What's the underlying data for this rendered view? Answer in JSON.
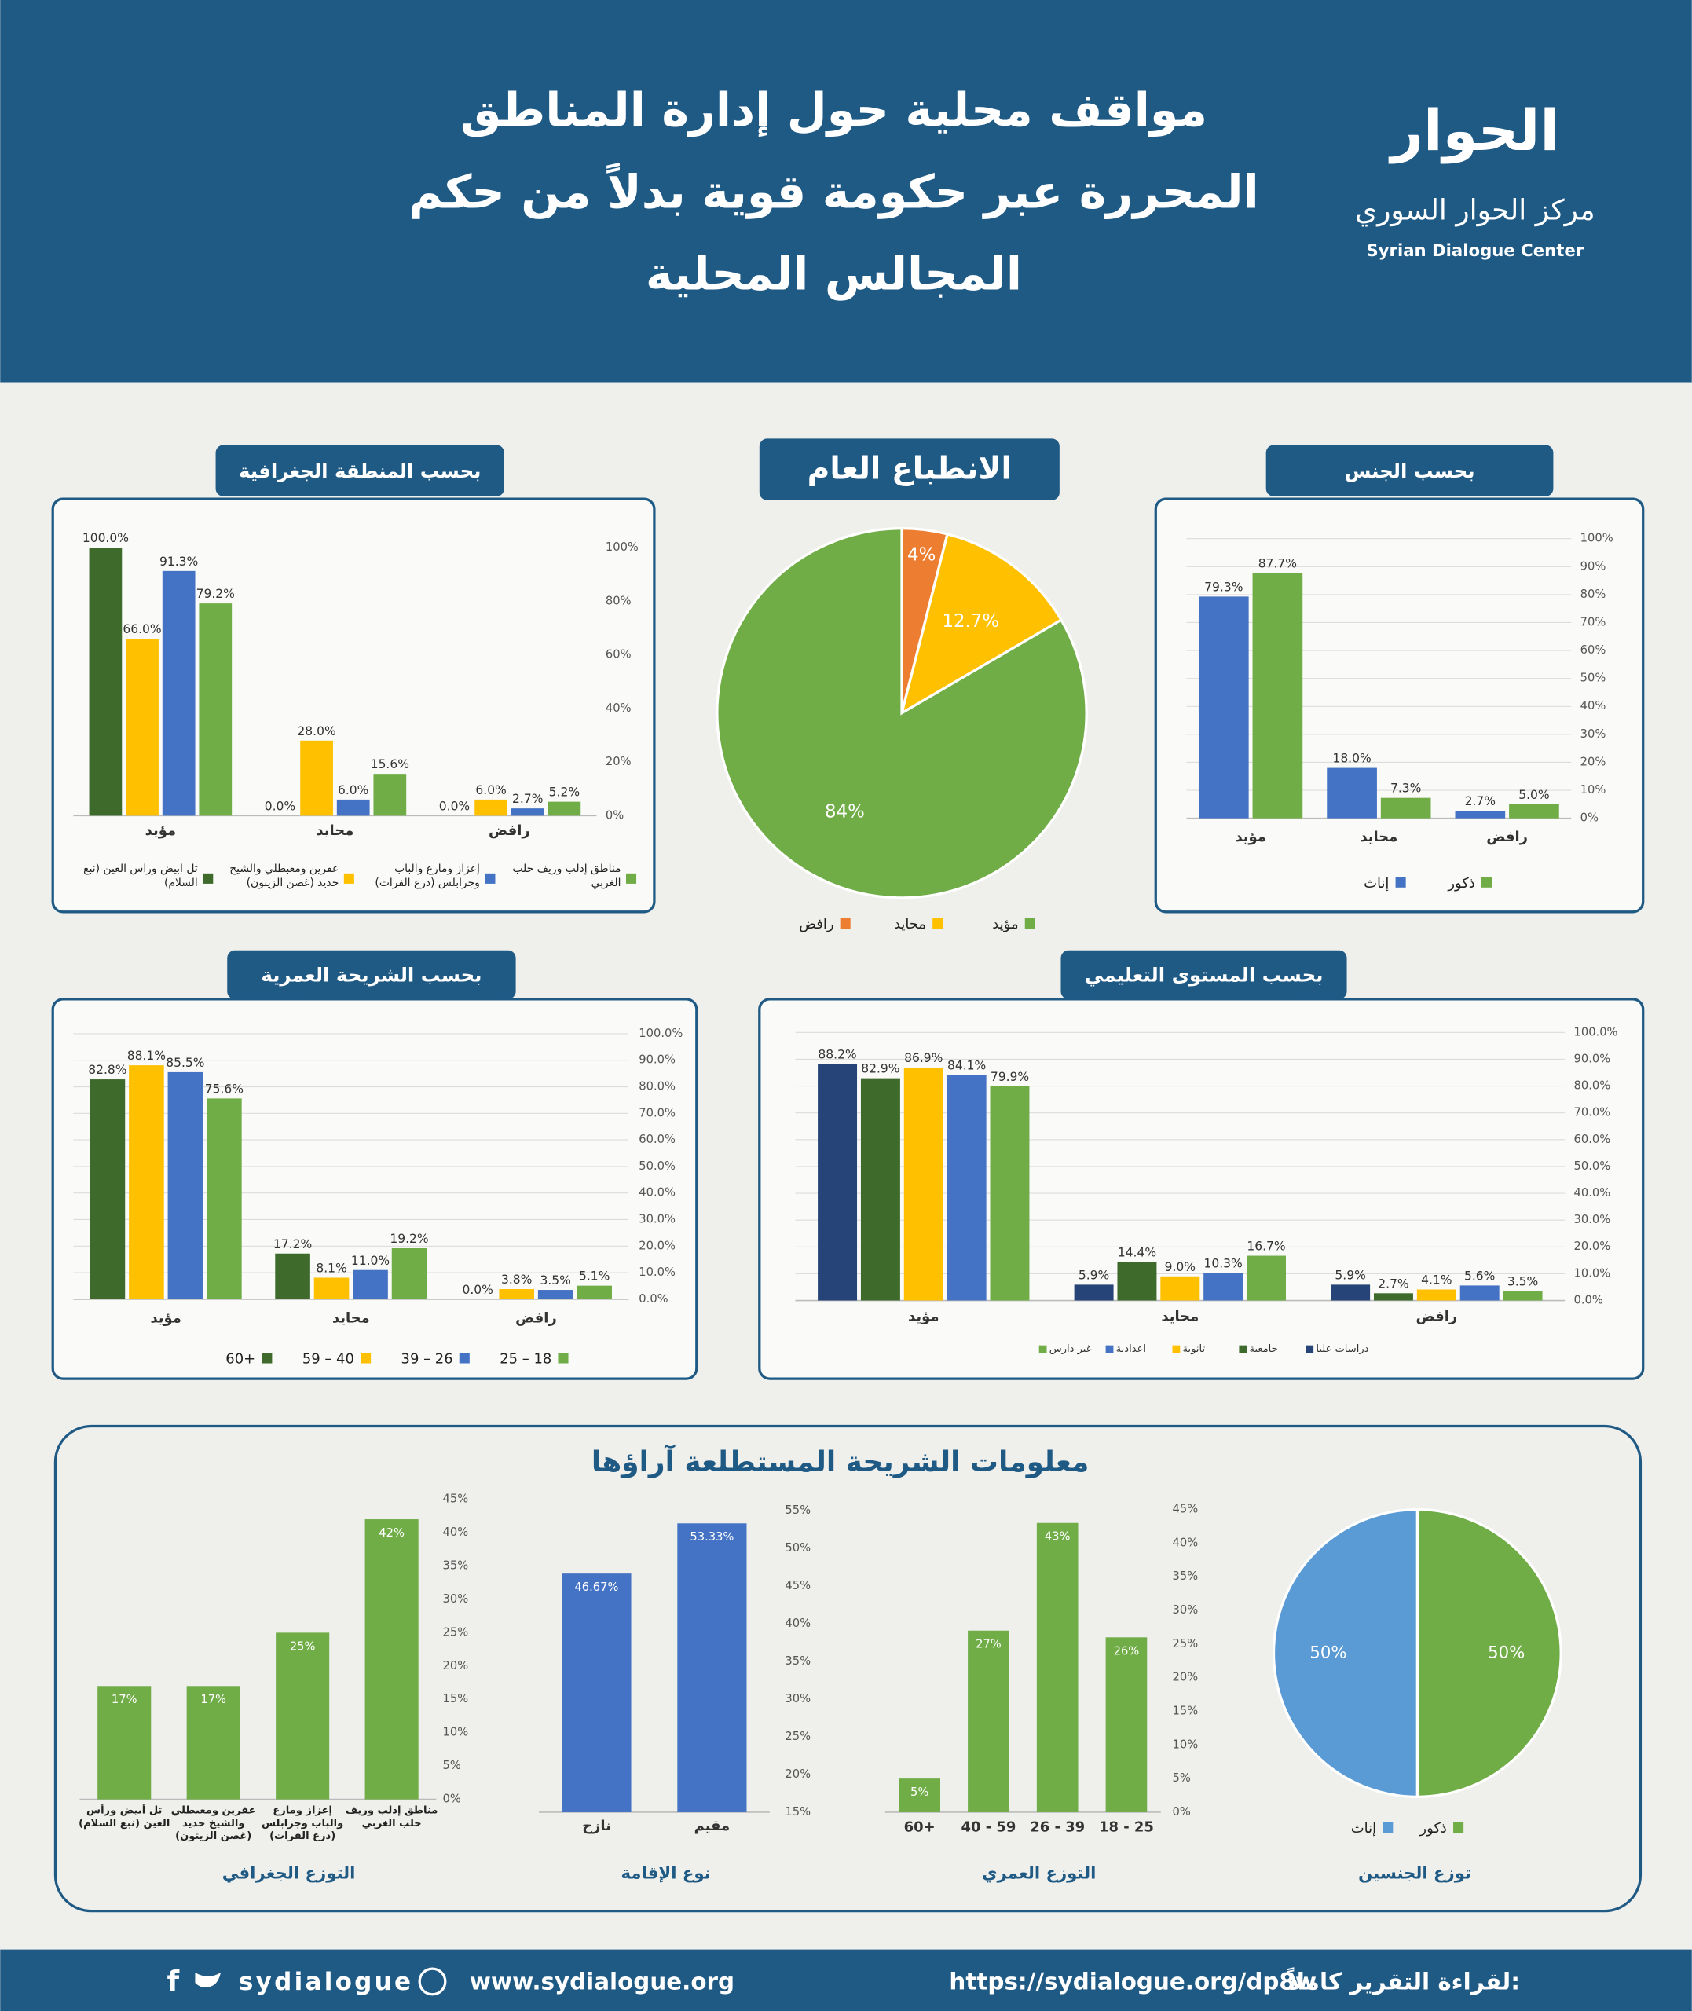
{
  "header": {
    "title_lines": [
      "مواقف محلية حول إدارة المناطق",
      "المحررة عبر حكومة قوية بدلاً من حكم",
      "المجالس المحلية"
    ],
    "logo": "الحوار",
    "org_ar": "مركز الحوار السوري",
    "org_en": "Syrian Dialogue Center"
  },
  "sample_section": {
    "title": "معلومات الشريحة المستطلعة آراؤها"
  },
  "footer": {
    "social": "sydialogue",
    "website": "www.sydialogue.org",
    "report_link": "https://sydialogue.org/dp8w",
    "report_label": "لقراءة التقرير كاملاً:"
  },
  "chart_data": [
    {
      "type": "bar",
      "title": "بحسب المنطقة الجغرافية",
      "categories": [
        "مؤيد",
        "محايد",
        "رافض"
      ],
      "series": [
        {
          "name": "تل أبيض ورأس العين (نبع السلام)",
          "color": "#3e6b2c",
          "values": [
            100.0,
            0.0,
            0.0
          ],
          "value_labels": [
            "100.0%",
            "0.0%",
            "0.0%"
          ]
        },
        {
          "name": "عفرين ومعبطلي والشيخ حديد (غصن الزيتون)",
          "color": "#ffc000",
          "values": [
            66.0,
            28.0,
            6.0
          ],
          "value_labels": [
            "66.0%",
            "28.0%",
            "6.0%"
          ]
        },
        {
          "name": "إعزاز ومارع والباب وجرابلس (درع الفرات)",
          "color": "#4472c4",
          "values": [
            91.3,
            6.0,
            2.7
          ],
          "value_labels": [
            "91.3%",
            "6.0%",
            "2.7%"
          ]
        },
        {
          "name": "مناطق إدلب وريف حلب الغربي",
          "color": "#70ad47",
          "values": [
            79.2,
            15.6,
            5.2
          ],
          "value_labels": [
            "79.2%",
            "15.6%",
            "5.2%"
          ]
        }
      ],
      "ylim": [
        0,
        100
      ],
      "yticks": [
        {
          "value": 0,
          "label": "0%"
        },
        {
          "value": 20,
          "label": "20%"
        },
        {
          "value": 40,
          "label": "40%"
        },
        {
          "value": 60,
          "label": "60%"
        },
        {
          "value": 80,
          "label": "80%"
        },
        {
          "value": 100,
          "label": "100%"
        }
      ],
      "grid": false
    },
    {
      "type": "pie",
      "title": "الانطباع العام",
      "categories": [
        "رافض",
        "محايد",
        "مؤيد"
      ],
      "values": [
        4,
        12.7,
        84
      ],
      "value_labels": [
        "4%",
        "12.7%",
        "84%"
      ],
      "colors": [
        "#ed7d31",
        "#ffc000",
        "#70ad47"
      ]
    },
    {
      "type": "bar",
      "title": "بحسب الجنس",
      "categories": [
        "مؤيد",
        "محايد",
        "رافض"
      ],
      "series": [
        {
          "name": "إناث",
          "color": "#4472c4",
          "values": [
            79.3,
            18.0,
            2.7
          ],
          "value_labels": [
            "79.3%",
            "18.0%",
            "2.7%"
          ]
        },
        {
          "name": "ذكور",
          "color": "#70ad47",
          "values": [
            87.7,
            7.3,
            5.0
          ],
          "value_labels": [
            "87.7%",
            "7.3%",
            "5.0%"
          ]
        }
      ],
      "ylim": [
        0,
        100
      ],
      "yticks": [
        {
          "value": 0,
          "label": "0%"
        },
        {
          "value": 10,
          "label": "10%"
        },
        {
          "value": 20,
          "label": "20%"
        },
        {
          "value": 30,
          "label": "30%"
        },
        {
          "value": 40,
          "label": "40%"
        },
        {
          "value": 50,
          "label": "50%"
        },
        {
          "value": 60,
          "label": "60%"
        },
        {
          "value": 70,
          "label": "70%"
        },
        {
          "value": 80,
          "label": "80%"
        },
        {
          "value": 90,
          "label": "90%"
        },
        {
          "value": 100,
          "label": "100%"
        }
      ],
      "grid": true
    },
    {
      "type": "bar",
      "title": "بحسب الشريحة العمرية",
      "categories": [
        "مؤيد",
        "محايد",
        "رافض"
      ],
      "series": [
        {
          "name": "60+",
          "color": "#3e6b2c",
          "values": [
            82.8,
            17.2,
            0.0
          ],
          "value_labels": [
            "82.8%",
            "17.2%",
            "0.0%"
          ]
        },
        {
          "name": "59 – 40",
          "color": "#ffc000",
          "values": [
            88.1,
            8.1,
            3.8
          ],
          "value_labels": [
            "88.1%",
            "8.1%",
            "3.8%"
          ]
        },
        {
          "name": "39 – 26",
          "color": "#4472c4",
          "values": [
            85.5,
            11.0,
            3.5
          ],
          "value_labels": [
            "85.5%",
            "11.0%",
            "3.5%"
          ]
        },
        {
          "name": "25 – 18",
          "color": "#70ad47",
          "values": [
            75.6,
            19.2,
            5.1
          ],
          "value_labels": [
            "75.6%",
            "19.2%",
            "5.1%"
          ]
        }
      ],
      "ylim": [
        0,
        100
      ],
      "yticks": [
        {
          "value": 0,
          "label": "0.0%"
        },
        {
          "value": 10,
          "label": "10.0%"
        },
        {
          "value": 20,
          "label": "20.0%"
        },
        {
          "value": 30,
          "label": "30.0%"
        },
        {
          "value": 40,
          "label": "40.0%"
        },
        {
          "value": 50,
          "label": "50.0%"
        },
        {
          "value": 60,
          "label": "60.0%"
        },
        {
          "value": 70,
          "label": "70.0%"
        },
        {
          "value": 80,
          "label": "80.0%"
        },
        {
          "value": 90,
          "label": "90.0%"
        },
        {
          "value": 100,
          "label": "100.0%"
        }
      ],
      "grid": true
    },
    {
      "type": "bar",
      "title": "بحسب المستوى التعليمي",
      "categories": [
        "مؤيد",
        "محايد",
        "رافض"
      ],
      "series": [
        {
          "name": "دراسات عليا",
          "color": "#264478",
          "values": [
            88.2,
            5.9,
            5.9
          ],
          "value_labels": [
            "88.2%",
            "5.9%",
            "5.9%"
          ]
        },
        {
          "name": "جامعية",
          "color": "#3e6b2c",
          "values": [
            82.9,
            14.4,
            2.7
          ],
          "value_labels": [
            "82.9%",
            "14.4%",
            "2.7%"
          ]
        },
        {
          "name": "ثانوية",
          "color": "#ffc000",
          "values": [
            86.9,
            9.0,
            4.1
          ],
          "value_labels": [
            "86.9%",
            "9.0%",
            "4.1%"
          ]
        },
        {
          "name": "اعدادية",
          "color": "#4472c4",
          "values": [
            84.1,
            10.3,
            5.6
          ],
          "value_labels": [
            "84.1%",
            "10.3%",
            "5.6%"
          ]
        },
        {
          "name": "غير دارس",
          "color": "#70ad47",
          "values": [
            79.9,
            16.7,
            3.5
          ],
          "value_labels": [
            "79.9%",
            "16.7%",
            "3.5%"
          ]
        }
      ],
      "ylim": [
        0,
        100
      ],
      "yticks": [
        {
          "value": 0,
          "label": "0.0%"
        },
        {
          "value": 10,
          "label": "10.0%"
        },
        {
          "value": 20,
          "label": "20.0%"
        },
        {
          "value": 30,
          "label": "30.0%"
        },
        {
          "value": 40,
          "label": "40.0%"
        },
        {
          "value": 50,
          "label": "50.0%"
        },
        {
          "value": 60,
          "label": "60.0%"
        },
        {
          "value": 70,
          "label": "70.0%"
        },
        {
          "value": 80,
          "label": "80.0%"
        },
        {
          "value": 90,
          "label": "90.0%"
        },
        {
          "value": 100,
          "label": "100.0%"
        }
      ],
      "grid": true
    },
    {
      "type": "bar",
      "title": "التوزع الجغرافي",
      "categories": [
        "تل أبيض ورأس العين (نبع السلام)",
        "عفرين ومعبطلي والشيخ حديد (غصن الزيتون)",
        "إعزاز ومارع والباب وجرابلس (درع الفرات)",
        "مناطق إدلب وريف حلب الغربي"
      ],
      "values": [
        17,
        17,
        25,
        42
      ],
      "value_labels": [
        "17%",
        "17%",
        "25%",
        "42%"
      ],
      "color": "#70ad47",
      "ylim": [
        0,
        45
      ],
      "yticks": [
        {
          "value": 0,
          "label": "0%"
        },
        {
          "value": 5,
          "label": "5%"
        },
        {
          "value": 10,
          "label": "10%"
        },
        {
          "value": 15,
          "label": "15%"
        },
        {
          "value": 20,
          "label": "20%"
        },
        {
          "value": 25,
          "label": "25%"
        },
        {
          "value": 30,
          "label": "30%"
        },
        {
          "value": 35,
          "label": "35%"
        },
        {
          "value": 40,
          "label": "40%"
        },
        {
          "value": 45,
          "label": "45%"
        }
      ],
      "grid": false
    },
    {
      "type": "bar",
      "title": "نوع الإقامة",
      "categories": [
        "نازح",
        "مقيم"
      ],
      "values": [
        46.67,
        53.33
      ],
      "value_labels": [
        "46.67%",
        "53.33%"
      ],
      "color": "#4472c4",
      "ylim": [
        15,
        55
      ],
      "yticks": [
        {
          "value": 15,
          "label": "15%"
        },
        {
          "value": 20,
          "label": "20%"
        },
        {
          "value": 25,
          "label": "25%"
        },
        {
          "value": 30,
          "label": "30%"
        },
        {
          "value": 35,
          "label": "35%"
        },
        {
          "value": 40,
          "label": "40%"
        },
        {
          "value": 45,
          "label": "45%"
        },
        {
          "value": 50,
          "label": "50%"
        },
        {
          "value": 55,
          "label": "55%"
        }
      ],
      "grid": false
    },
    {
      "type": "bar",
      "title": "التوزع العمري",
      "categories": [
        "60+",
        "40 - 59",
        "26 - 39",
        "18 - 25"
      ],
      "values": [
        5,
        27,
        43,
        26
      ],
      "value_labels": [
        "5%",
        "27%",
        "43%",
        "26%"
      ],
      "color": "#70ad47",
      "ylim": [
        0,
        45
      ],
      "yticks": [
        {
          "value": 0,
          "label": "0%"
        },
        {
          "value": 5,
          "label": "5%"
        },
        {
          "value": 10,
          "label": "10%"
        },
        {
          "value": 15,
          "label": "15%"
        },
        {
          "value": 20,
          "label": "20%"
        },
        {
          "value": 25,
          "label": "25%"
        },
        {
          "value": 30,
          "label": "30%"
        },
        {
          "value": 35,
          "label": "35%"
        },
        {
          "value": 40,
          "label": "40%"
        },
        {
          "value": 45,
          "label": "45%"
        }
      ],
      "grid": false
    },
    {
      "type": "pie",
      "title": "توزع الجنسين",
      "categories": [
        "ذكور",
        "إناث"
      ],
      "values": [
        50,
        50
      ],
      "value_labels": [
        "50%",
        "50%"
      ],
      "colors": [
        "#70ad47",
        "#5b9bd5"
      ]
    }
  ]
}
